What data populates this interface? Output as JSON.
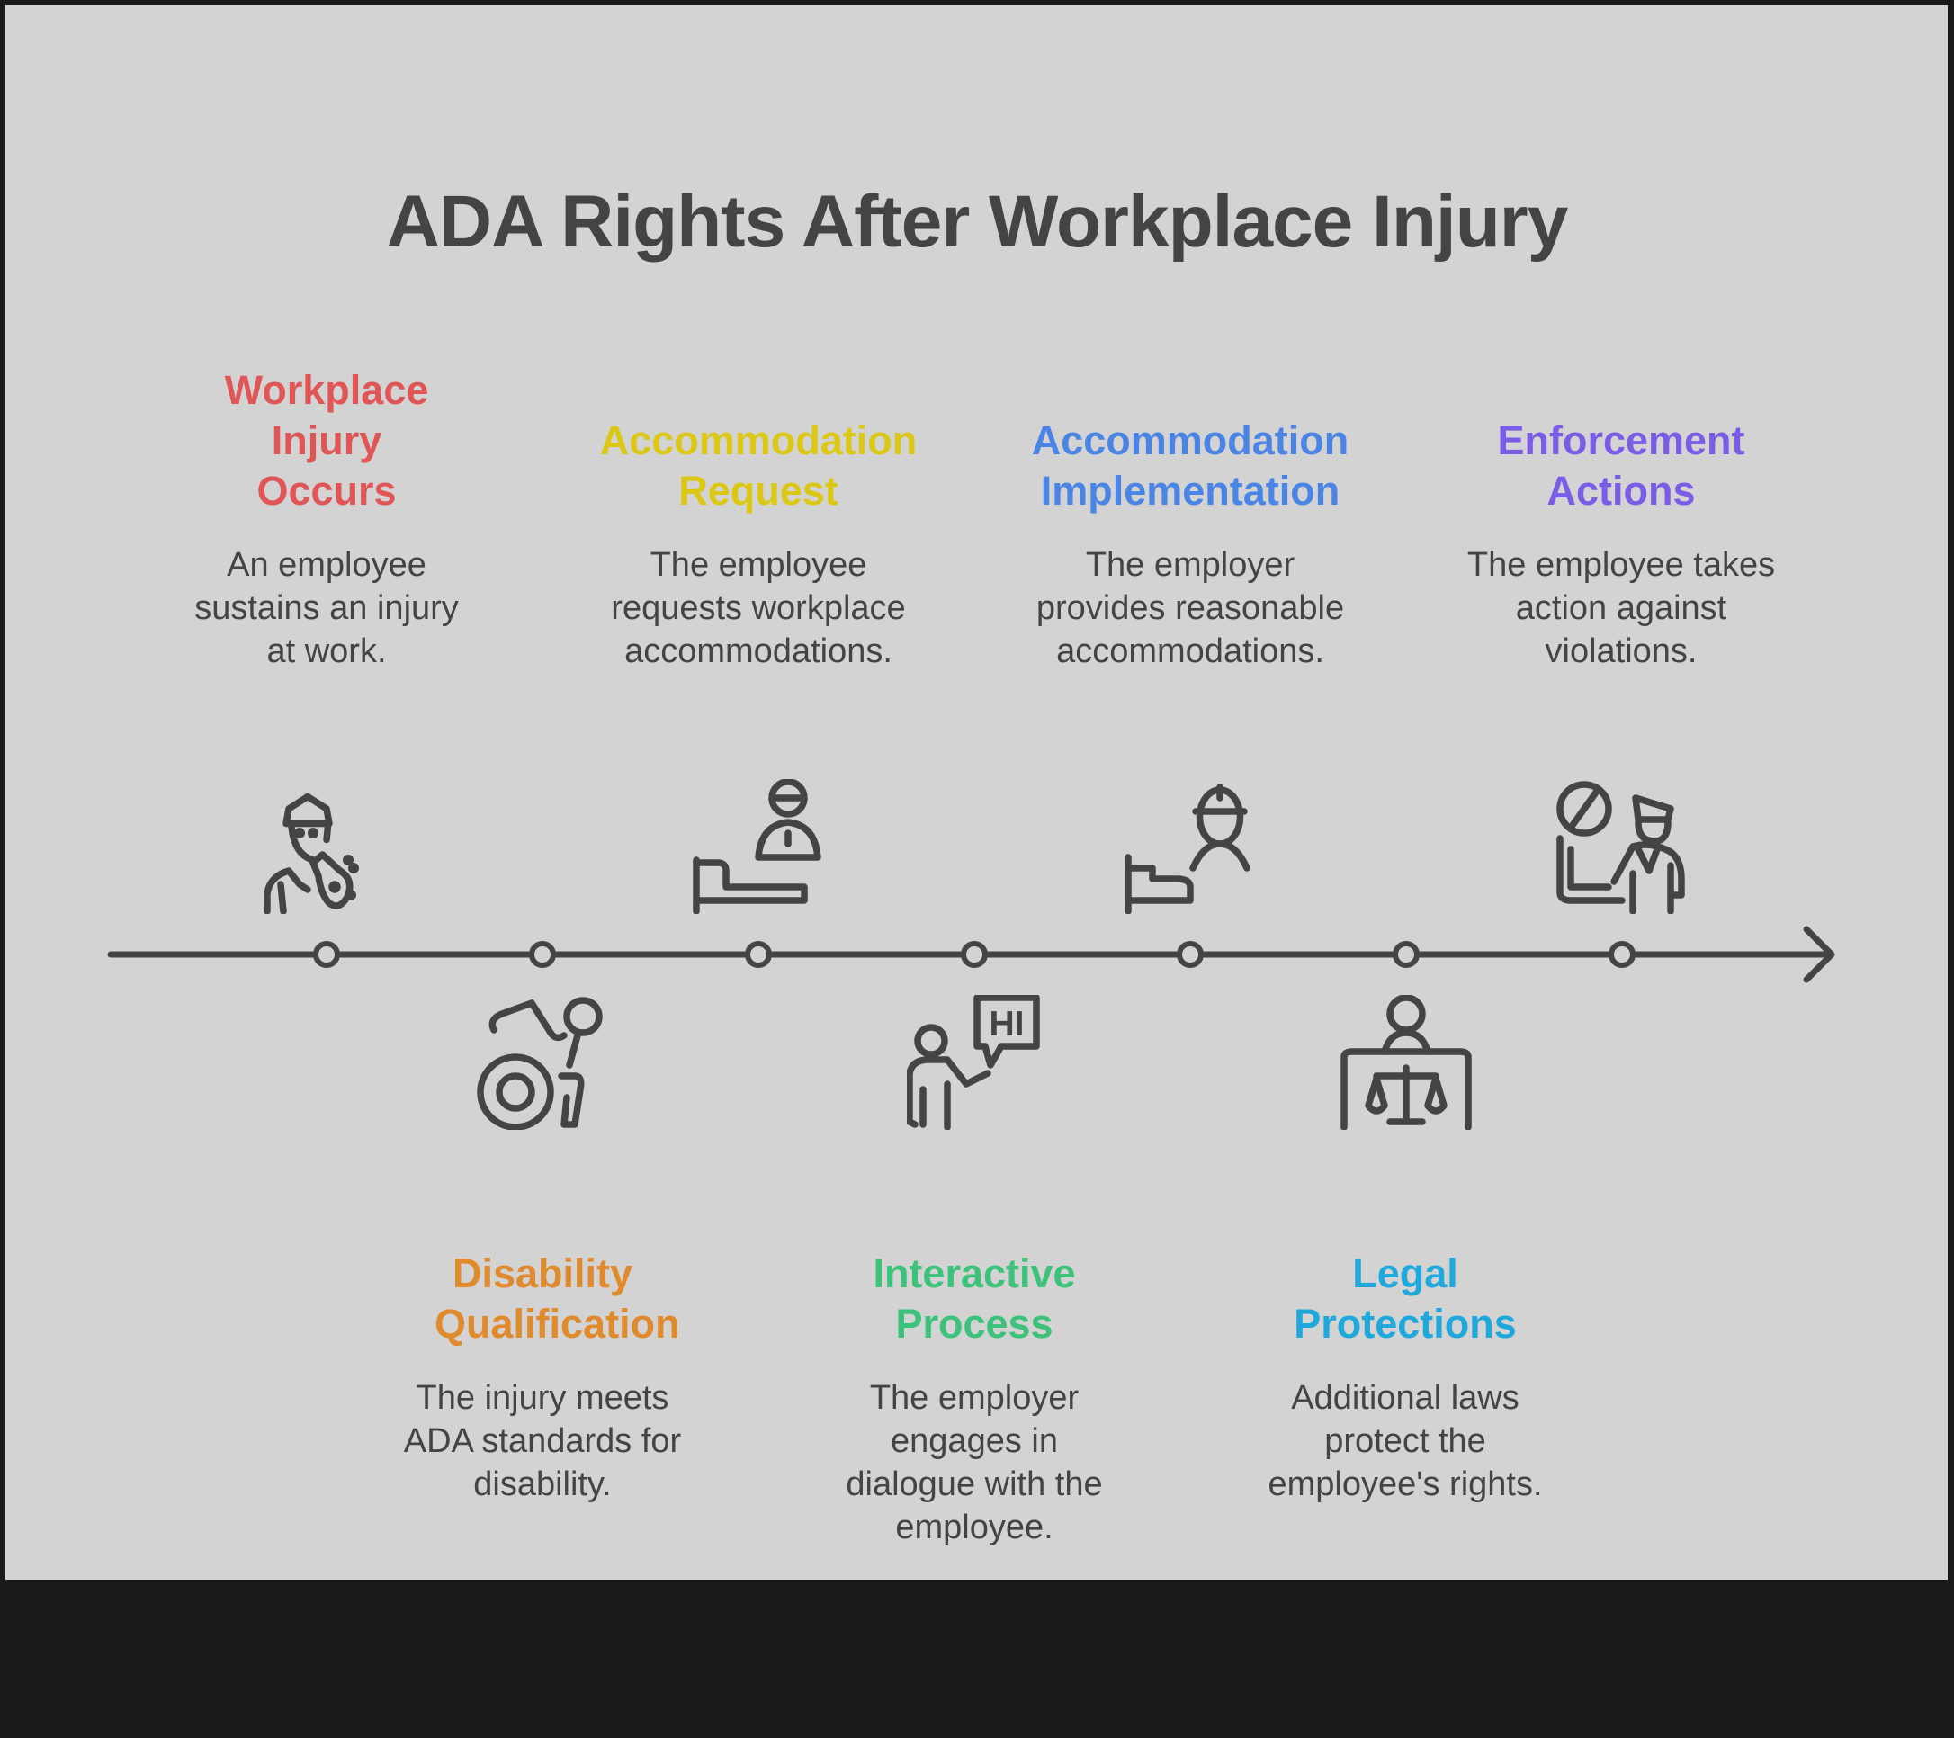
{
  "title": "ADA Rights After Workplace Injury",
  "colors": {
    "background": "#d3d3d3",
    "text": "#444444",
    "line": "#444444"
  },
  "steps": [
    {
      "heading": "Workplace Injury Occurs",
      "description": "An employee sustains an injury at work.",
      "color": "#e05555",
      "icon": "injured-worker-icon",
      "position": "above"
    },
    {
      "heading": "Disability Qualification",
      "description": "The injury meets ADA standards for disability.",
      "color": "#e08a2e",
      "icon": "wheelchair-icon",
      "position": "below"
    },
    {
      "heading": "Accommodation Request",
      "description": "The employee requests workplace accommodations.",
      "color": "#dcc814",
      "icon": "patient-bed-icon",
      "position": "above"
    },
    {
      "heading": "Interactive Process",
      "description": "The employer engages in dialogue with the employee.",
      "color": "#3cc27a",
      "icon": "speech-bubble-person-icon",
      "position": "below"
    },
    {
      "heading": "Accommodation Implementation",
      "description": "The employer provides reasonable accommodations.",
      "color": "#4a84e4",
      "icon": "worker-helmet-bed-icon",
      "position": "above"
    },
    {
      "heading": "Legal Protections",
      "description": "Additional laws protect the employee's rights.",
      "color": "#1ea8dc",
      "icon": "judge-scales-icon",
      "position": "below"
    },
    {
      "heading": "Enforcement Actions",
      "description": "The employee takes action against violations.",
      "color": "#7a5ce6",
      "icon": "officer-prohibited-icon",
      "position": "above"
    }
  ],
  "bubble_text": "HI"
}
